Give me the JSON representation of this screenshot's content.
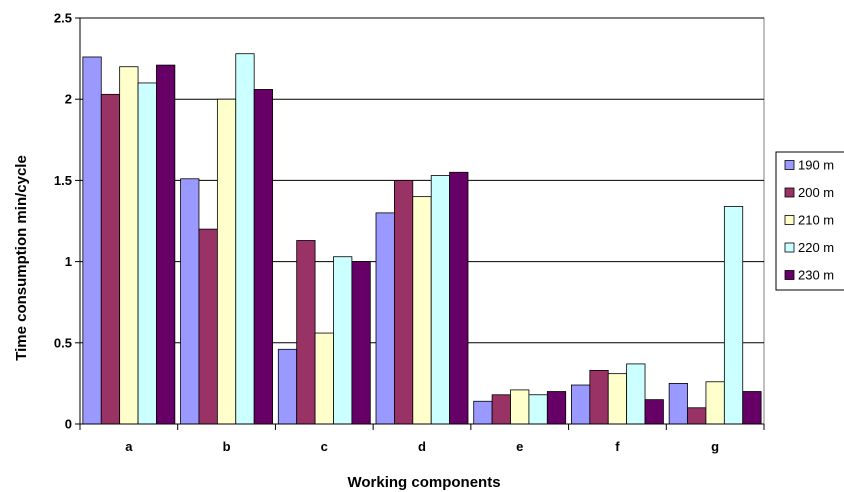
{
  "chart_data": {
    "type": "bar",
    "title": "",
    "xlabel": "Working components",
    "ylabel": "Time consumption min/cycle",
    "categories": [
      "a",
      "b",
      "c",
      "d",
      "e",
      "f",
      "g"
    ],
    "ylim": [
      0,
      2.5
    ],
    "yticks": [
      "0",
      "0.5",
      "1",
      "1.5",
      "2",
      "2.5"
    ],
    "grid": "horizontal",
    "legend_position": "right",
    "series": [
      {
        "name": "190 m",
        "color": "#9999ff",
        "values": [
          2.26,
          1.51,
          0.46,
          1.3,
          0.14,
          0.24,
          0.25
        ]
      },
      {
        "name": "200 m",
        "color": "#993366",
        "values": [
          2.03,
          1.2,
          1.13,
          1.5,
          0.18,
          0.33,
          0.1
        ]
      },
      {
        "name": "210 m",
        "color": "#ffffcc",
        "values": [
          2.2,
          2.0,
          0.56,
          1.4,
          0.21,
          0.31,
          0.26
        ]
      },
      {
        "name": "220 m",
        "color": "#ccffff",
        "values": [
          2.1,
          2.28,
          1.03,
          1.53,
          0.18,
          0.37,
          1.34
        ]
      },
      {
        "name": "230 m",
        "color": "#660066",
        "values": [
          2.21,
          2.06,
          1.0,
          1.55,
          0.2,
          0.15,
          0.2
        ]
      }
    ]
  }
}
